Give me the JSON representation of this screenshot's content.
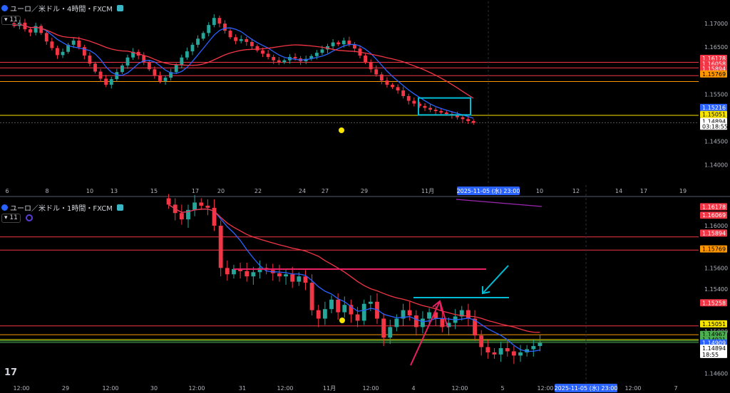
{
  "top_panel": {
    "title": "ユーロ／米ドル・4時間・FXCM",
    "indicator_count": "11",
    "y_ticks": [
      "1.17000",
      "1.16500",
      "1.15500",
      "1.14500",
      "1.14000"
    ],
    "x_ticks": [
      "6",
      "8",
      "10",
      "13",
      "15",
      "17",
      "20",
      "22",
      "24",
      "27",
      "29",
      "11月",
      "10",
      "12",
      "14",
      "17",
      "19"
    ],
    "cursor_date": "2025-11-05 (水)  23:00",
    "price_labels": [
      {
        "text": "1.16178",
        "color": "#f23645"
      },
      {
        "text": "1.16058",
        "color": "#f23645"
      },
      {
        "text": "1.15894",
        "color": "#f23645"
      },
      {
        "text": "1.15769",
        "color": "#ff9800"
      },
      {
        "text": "1.15216",
        "color": "#2962ff"
      },
      {
        "text": "1.15051",
        "color": "#f7e500"
      },
      {
        "text": "1.14894",
        "color": "#ffffff"
      },
      {
        "text": "03:18:55",
        "color": "#ffffff"
      }
    ]
  },
  "bottom_panel": {
    "title": "ユーロ／米ドル・1時間・FXCM",
    "indicator_count": "11",
    "y_ticks": [
      "1.16000",
      "1.15600",
      "1.15400",
      "1.15000",
      "1.14600"
    ],
    "x_ticks": [
      "12:00",
      "29",
      "12:00",
      "30",
      "12:00",
      "31",
      "12:00",
      "11月",
      "12:00",
      "4",
      "12:00",
      "5",
      "12:00",
      "12:00",
      "7"
    ],
    "cursor_date": "2025-11-05 (水)  23:00",
    "price_labels": [
      {
        "text": "1.16178",
        "color": "#f23645"
      },
      {
        "text": "1.16069",
        "color": "#f23645"
      },
      {
        "text": "1.15894",
        "color": "#f23645"
      },
      {
        "text": "1.15769",
        "color": "#ff9800"
      },
      {
        "text": "1.15258",
        "color": "#f23645"
      },
      {
        "text": "1.15051",
        "color": "#f7e500"
      },
      {
        "text": "1.14967",
        "color": "#4caf50"
      },
      {
        "text": "1.14921",
        "color": "#4caf50"
      },
      {
        "text": "1.14909",
        "color": "#2962ff"
      },
      {
        "text": "1.14894",
        "color": "#ffffff"
      },
      {
        "text": "18:55",
        "color": "#ffffff"
      }
    ]
  },
  "chart_data": [
    {
      "type": "candlestick",
      "title": "ユーロ／米ドル・4時間・FXCM",
      "ylim": [
        1.1375,
        1.1735
      ],
      "closes": [
        1.1695,
        1.1702,
        1.1688,
        1.1681,
        1.1695,
        1.168,
        1.1662,
        1.1648,
        1.1633,
        1.164,
        1.1655,
        1.1664,
        1.165,
        1.1632,
        1.1615,
        1.1598,
        1.1583,
        1.157,
        1.1582,
        1.1597,
        1.1611,
        1.1628,
        1.164,
        1.1632,
        1.1618,
        1.1603,
        1.159,
        1.1578,
        1.1585,
        1.1597,
        1.1612,
        1.1628,
        1.1641,
        1.1655,
        1.1668,
        1.168,
        1.1697,
        1.1712,
        1.17,
        1.1685,
        1.1671,
        1.1663,
        1.1667,
        1.1661,
        1.1652,
        1.1643,
        1.1636,
        1.1629,
        1.1622,
        1.1618,
        1.1622,
        1.1629,
        1.1626,
        1.162,
        1.1625,
        1.1631,
        1.1638,
        1.1645,
        1.1652,
        1.166,
        1.1656,
        1.1664,
        1.1656,
        1.1647,
        1.1632,
        1.1618,
        1.1603,
        1.1592,
        1.1579,
        1.157,
        1.1565,
        1.1558,
        1.1546,
        1.1536,
        1.153,
        1.1525,
        1.1521,
        1.1517,
        1.1514,
        1.1511,
        1.1508,
        1.1505,
        1.1501,
        1.1497,
        1.1493,
        1.1489
      ],
      "series": [
        {
          "name": "",
          "color": "#2962ff"
        },
        {
          "name": "",
          "color": "#f23645"
        }
      ],
      "horizontal_lines": [
        1.16178,
        1.16058,
        1.15894,
        1.15769,
        1.15051,
        1.14894
      ]
    },
    {
      "type": "candlestick",
      "title": "ユーロ／米ドル・1時間・FXCM",
      "ylim": [
        1.1455,
        1.1625
      ],
      "closes": [
        1.162,
        1.1612,
        1.1606,
        1.1615,
        1.1622,
        1.1619,
        1.1617,
        1.16,
        1.156,
        1.1554,
        1.1559,
        1.1557,
        1.1552,
        1.1556,
        1.156,
        1.1558,
        1.1555,
        1.1552,
        1.1554,
        1.1547,
        1.1552,
        1.1546,
        1.152,
        1.1512,
        1.1521,
        1.153,
        1.1518,
        1.1525,
        1.1516,
        1.151,
        1.1526,
        1.1528,
        1.1512,
        1.1494,
        1.1504,
        1.1512,
        1.152,
        1.1515,
        1.1504,
        1.1512,
        1.1518,
        1.1512,
        1.1504,
        1.1508,
        1.1514,
        1.152,
        1.1512,
        1.1496,
        1.1485,
        1.148,
        1.1478,
        1.1484,
        1.1481,
        1.1477,
        1.148,
        1.1483,
        1.1486,
        1.1489
      ],
      "series": [
        {
          "name": "",
          "color": "#2962ff"
        },
        {
          "name": "",
          "color": "#f23645"
        },
        {
          "name": "",
          "color": "#9c27b0"
        }
      ],
      "horizontal_lines": [
        1.15894,
        1.15769,
        1.15051,
        1.14967,
        1.14921,
        1.14909,
        1.14894
      ]
    }
  ],
  "colors": {
    "up": "#26a69a",
    "down": "#f23645",
    "bg": "#000000",
    "grid": "#1e222d",
    "cyan": "#00bcd4",
    "pink": "#e91e63"
  }
}
